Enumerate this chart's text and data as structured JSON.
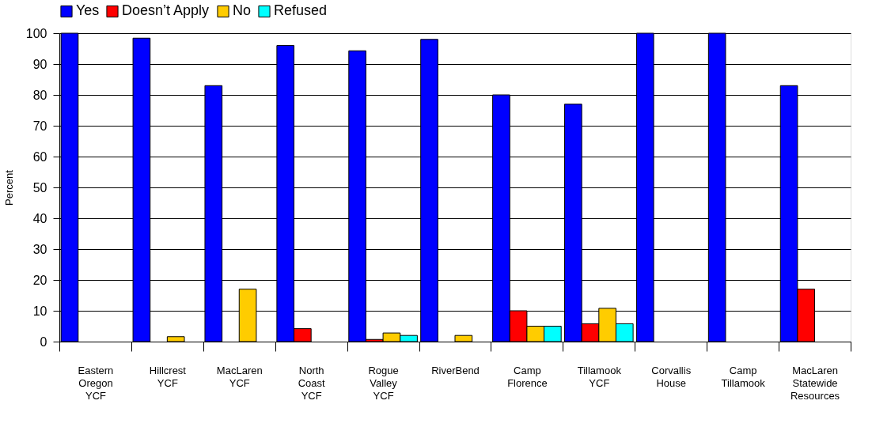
{
  "chart_data": {
    "type": "bar",
    "ylabel": "Percent",
    "categories": [
      "Eastern Oregon YCF",
      "Hillcrest YCF",
      "MacLaren YCF",
      "North Coast YCF",
      "Rogue Valley YCF",
      "RiverBend",
      "Camp Florence",
      "Tillamook YCF",
      "Corvallis House",
      "Camp Tillamook",
      "MacLaren Statewide Resources"
    ],
    "series": [
      {
        "name": "Yes",
        "color": "#0000ff",
        "values": [
          100,
          98.4,
          83,
          96,
          94.3,
          98,
          80,
          77,
          100,
          100,
          83
        ]
      },
      {
        "name": "Doesn’t Apply",
        "color": "#ff0000",
        "values": [
          null,
          null,
          null,
          4.2,
          0.7,
          null,
          10,
          5.8,
          null,
          null,
          17
        ]
      },
      {
        "name": "No",
        "color": "#ffcc00",
        "values": [
          null,
          1.6,
          17,
          null,
          2.8,
          2,
          5,
          10.8,
          null,
          null,
          null
        ]
      },
      {
        "name": "Refused",
        "color": "#00ffff",
        "values": [
          null,
          null,
          null,
          null,
          2,
          null,
          5,
          5.8,
          null,
          null,
          null
        ]
      }
    ],
    "ylim": [
      0,
      100
    ],
    "yticks": [
      0,
      10,
      20,
      30,
      40,
      50,
      60,
      70,
      80,
      90,
      100
    ],
    "grid": "y",
    "legend": "top"
  }
}
